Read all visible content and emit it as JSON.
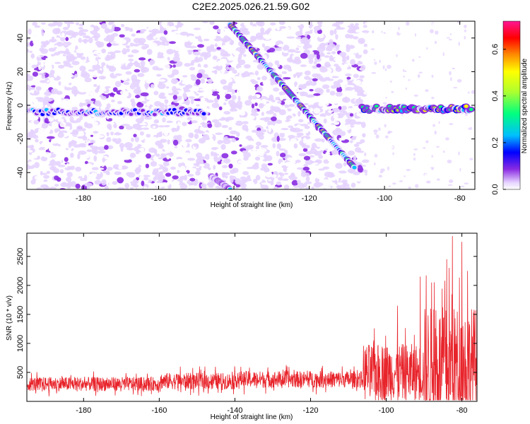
{
  "title": "C2E2.2025.026.21.59.G02",
  "colors": {
    "line": "#e8242b",
    "axis": "#000000",
    "background": "#ffffff"
  },
  "chart_data": [
    {
      "type": "heatmap",
      "xlabel": "Height of straight line (km)",
      "ylabel": "Frequency (Hz)",
      "xlim": [
        -195,
        -76
      ],
      "ylim": [
        -50,
        50
      ],
      "xticks": [
        -180,
        -160,
        -140,
        -120,
        -100,
        -80
      ],
      "yticks": [
        -40,
        -20,
        0,
        20,
        40
      ],
      "colorbar": {
        "label": "Normalized spectral amplitude",
        "range": [
          0.0,
          0.72
        ],
        "ticks": [
          0.0,
          0.2,
          0.4,
          0.6
        ],
        "tick_labels": [
          "0.0",
          "0.2",
          "0.4",
          "0.6"
        ],
        "colormap": [
          "#ffffff",
          "#e6d4ff",
          "#8a2be2",
          "#0000ff",
          "#00bfff",
          "#00ff7f",
          "#adff2f",
          "#ffff00",
          "#ff8c00",
          "#ff0000",
          "#ff1493"
        ]
      },
      "features": [
        {
          "name": "diagonal streak",
          "x_start": -141,
          "freq_start": 48,
          "x_end": -108,
          "freq_end": -37,
          "amplitude": 0.4
        },
        {
          "name": "near-zero line",
          "x_start": -106,
          "x_end": -77,
          "freq": -2,
          "amplitude": 0.5
        },
        {
          "name": "weak left band",
          "x_start": -195,
          "x_end": -148,
          "freq": -4,
          "amplitude": 0.25
        },
        {
          "name": "lower tail",
          "x_start": -146,
          "freq_start": -42,
          "x_end": -141,
          "freq_end": -50,
          "amplitude": 0.35
        }
      ]
    },
    {
      "type": "line",
      "xlabel": "Height of straight line (km)",
      "ylabel": "SNR (10 * v/v)",
      "xlim": [
        -195,
        -76
      ],
      "ylim": [
        0,
        2900
      ],
      "xticks": [
        -180,
        -160,
        -140,
        -120,
        -100,
        -80
      ],
      "yticks": [
        500,
        1000,
        1500,
        2000,
        2500
      ],
      "series": [
        {
          "name": "SNR",
          "segments": [
            {
              "x_start": -195,
              "x_end": -160,
              "baseline": 300,
              "spread": 220
            },
            {
              "x_start": -160,
              "x_end": -140,
              "baseline": 350,
              "spread": 260
            },
            {
              "x_start": -140,
              "x_end": -106,
              "baseline": 380,
              "spread": 260
            },
            {
              "x_start": -106,
              "x_end": -90,
              "baseline": 500,
              "spread": 900
            },
            {
              "x_start": -90,
              "x_end": -76,
              "baseline": 650,
              "spread": 1800
            }
          ],
          "peaks": [
            {
              "x": -97,
              "y": 1650
            },
            {
              "x": -91,
              "y": 2150
            },
            {
              "x": -88,
              "y": 2050
            },
            {
              "x": -84,
              "y": 2450
            },
            {
              "x": -82.5,
              "y": 2850
            },
            {
              "x": -80,
              "y": 2750
            },
            {
              "x": -78.5,
              "y": 2250
            }
          ]
        }
      ]
    }
  ]
}
